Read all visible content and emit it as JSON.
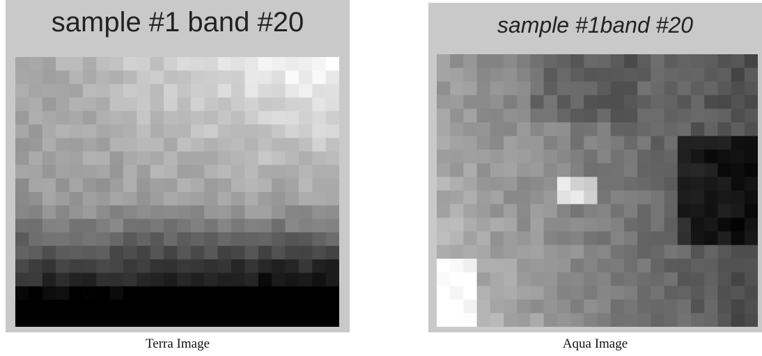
{
  "panels": [
    {
      "title": "sample #1 band #20",
      "caption": "Terra Image"
    },
    {
      "title": "sample #1band #20",
      "caption": "Aqua Image"
    }
  ]
}
